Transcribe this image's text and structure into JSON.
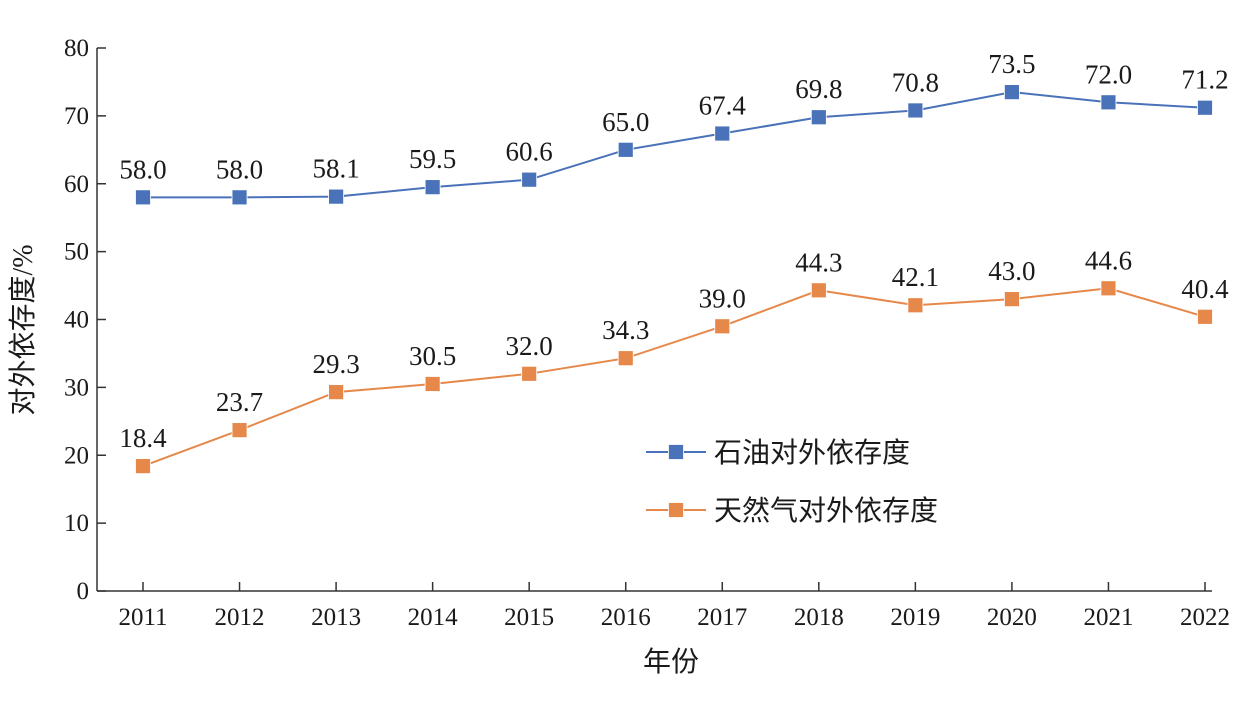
{
  "chart_data": {
    "type": "line",
    "title": "",
    "xlabel": "年份",
    "ylabel": "对外依存度/%",
    "ylim": [
      0,
      80
    ],
    "yticks": [
      "0",
      "10",
      "20",
      "30",
      "40",
      "50",
      "60",
      "70",
      "80"
    ],
    "categories": [
      "2011",
      "2012",
      "2013",
      "2014",
      "2015",
      "2016",
      "2017",
      "2018",
      "2019",
      "2020",
      "2021",
      "2022"
    ],
    "grid": false,
    "legend_position": "center-right",
    "series": [
      {
        "name": "石油对外依存度",
        "color": "#4a72b8",
        "marker_color": "#4a72b8",
        "values": [
          58.0,
          58.0,
          58.1,
          59.5,
          60.6,
          65.0,
          67.4,
          69.8,
          70.8,
          73.5,
          72.0,
          71.2
        ],
        "labels": [
          "58.0",
          "58.0",
          "58.1",
          "59.5",
          "60.6",
          "65.0",
          "67.4",
          "69.8",
          "70.8",
          "73.5",
          "72.0",
          "71.2"
        ]
      },
      {
        "name": "天然气对外依存度",
        "color": "#e6884a",
        "marker_color": "#e6884a",
        "values": [
          18.4,
          23.7,
          29.3,
          30.5,
          32.0,
          34.3,
          39.0,
          44.3,
          42.1,
          43.0,
          44.6,
          40.4
        ],
        "labels": [
          "18.4",
          "23.7",
          "29.3",
          "30.5",
          "32.0",
          "34.3",
          "39.0",
          "44.3",
          "42.1",
          "43.0",
          "44.6",
          "40.4"
        ]
      }
    ]
  }
}
